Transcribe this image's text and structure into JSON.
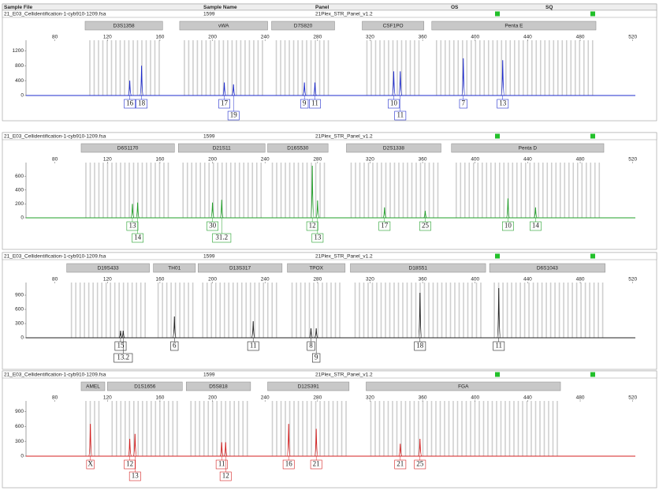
{
  "chart_data": [
    {
      "type": "line",
      "columns": [
        "Sample File",
        "Sample Name",
        "Panel",
        "OS",
        "SQ"
      ],
      "sample_file": "21_E03_Cellidentification-1-cyb910-1209.fsa",
      "sample_name": "1599",
      "panel": "21Plex_STR_Panel_v1.2",
      "color": "#1f2ccc",
      "xlim": [
        58,
        522
      ],
      "xticks": [
        80,
        120,
        160,
        200,
        240,
        280,
        320,
        360,
        400,
        440,
        480,
        520
      ],
      "ylim": [
        0,
        1400
      ],
      "yticks": [
        0,
        400,
        800,
        1200
      ],
      "markers": [
        {
          "name": "D3S1358",
          "range": [
            103,
            162
          ]
        },
        {
          "name": "vWA",
          "range": [
            175,
            242
          ]
        },
        {
          "name": "D7S820",
          "range": [
            245,
            293
          ]
        },
        {
          "name": "CSF1PO",
          "range": [
            314,
            361
          ]
        },
        {
          "name": "Penta E",
          "range": [
            367,
            492
          ]
        }
      ],
      "peaks": {
        "x": [
          137,
          146,
          209,
          216,
          270,
          278,
          338,
          343,
          391,
          421
        ],
        "values": [
          400,
          800,
          350,
          300,
          350,
          350,
          650,
          650,
          1000,
          950
        ],
        "labels": [
          "16",
          "18",
          "17",
          "19",
          "9",
          "11",
          "10",
          "11",
          "7",
          "13"
        ]
      }
    },
    {
      "type": "line",
      "sample_file": "21_E03_Cellidentification-1-cyb910-1209.fsa",
      "sample_name": "1599",
      "panel": "21Plex_STR_Panel_v1.2",
      "color": "#22a02a",
      "xlim": [
        58,
        522
      ],
      "xticks": [
        80,
        120,
        160,
        200,
        240,
        280,
        320,
        360,
        400,
        440,
        480,
        520
      ],
      "ylim": [
        0,
        750
      ],
      "yticks": [
        0,
        200,
        400,
        600
      ],
      "markers": [
        {
          "name": "D6S1170",
          "range": [
            100,
            171
          ]
        },
        {
          "name": "D21S11",
          "range": [
            174,
            240
          ]
        },
        {
          "name": "D16S530",
          "range": [
            242,
            288
          ]
        },
        {
          "name": "D2S1338",
          "range": [
            302,
            374
          ]
        },
        {
          "name": "Penta D",
          "range": [
            382,
            498
          ]
        }
      ],
      "peaks": {
        "x": [
          139,
          143,
          200,
          207,
          276,
          280,
          331,
          362,
          425,
          446
        ],
        "values": [
          200,
          220,
          220,
          260,
          750,
          250,
          150,
          100,
          280,
          150
        ],
        "labels": [
          "13",
          "14",
          "30",
          "31.2",
          "12",
          "13",
          "17",
          "25",
          "10",
          "14"
        ]
      }
    },
    {
      "type": "line",
      "sample_file": "21_E03_Cellidentification-1-cyb910-1209.fsa",
      "sample_name": "1599",
      "panel": "21Plex_STR_Panel_v1.2",
      "color": "#222222",
      "xlim": [
        58,
        522
      ],
      "xticks": [
        80,
        120,
        160,
        200,
        240,
        280,
        320,
        360,
        400,
        440,
        480,
        520
      ],
      "ylim": [
        0,
        1100
      ],
      "yticks": [
        0,
        300,
        600,
        900
      ],
      "markers": [
        {
          "name": "D19S433",
          "range": [
            89,
            152
          ]
        },
        {
          "name": "TH01",
          "range": [
            155,
            187
          ]
        },
        {
          "name": "D13S317",
          "range": [
            189,
            253
          ]
        },
        {
          "name": "TPOX",
          "range": [
            257,
            301
          ]
        },
        {
          "name": "D18S51",
          "range": [
            305,
            408
          ]
        },
        {
          "name": "D6S1043",
          "range": [
            411,
            499
          ]
        }
      ],
      "peaks": {
        "x": [
          130,
          132,
          171,
          231,
          275,
          279,
          358,
          418
        ],
        "values": [
          150,
          150,
          450,
          350,
          200,
          200,
          950,
          1050
        ],
        "labels": [
          "15",
          "13.2",
          "6",
          "11",
          "8",
          "9",
          "18",
          "11"
        ]
      }
    },
    {
      "type": "line",
      "sample_file": "21_E03_Cellidentification-1-cyb910-1209.fsa",
      "sample_name": "1599",
      "panel": "21Plex_STR_Panel_v1.2",
      "color": "#d42020",
      "xlim": [
        58,
        522
      ],
      "xticks": [
        80,
        120,
        160,
        200,
        240,
        280,
        320,
        360,
        400,
        440,
        480,
        520
      ],
      "ylim": [
        0,
        1050
      ],
      "yticks": [
        0,
        300,
        600,
        900
      ],
      "markers": [
        {
          "name": "AMEL",
          "range": [
            100,
            118
          ]
        },
        {
          "name": "D1S1656",
          "range": [
            120,
            177
          ]
        },
        {
          "name": "D5S818",
          "range": [
            180,
            229
          ]
        },
        {
          "name": "D12S391",
          "range": [
            242,
            304
          ]
        },
        {
          "name": "FGA",
          "range": [
            317,
            465
          ]
        }
      ],
      "peaks": {
        "x": [
          107,
          137,
          141,
          207,
          210,
          258,
          279,
          343,
          358
        ],
        "values": [
          650,
          350,
          450,
          280,
          280,
          650,
          550,
          250,
          350
        ],
        "labels": [
          "X",
          "12",
          "13",
          "11",
          "12",
          "16",
          "21",
          "21",
          "25"
        ]
      }
    }
  ]
}
